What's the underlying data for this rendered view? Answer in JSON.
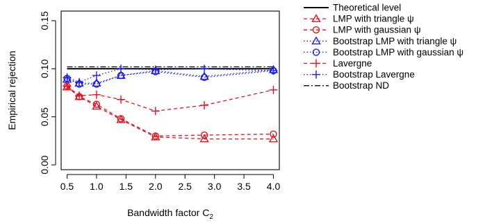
{
  "chart_data": {
    "type": "line",
    "xlabel": "Bandwidth factor C",
    "xlabel_sub": "2",
    "ylabel": "Empirical rejection",
    "xlim": [
      0.4,
      4.1
    ],
    "ylim": [
      -0.005,
      0.16
    ],
    "xticks": [
      0.5,
      1.0,
      1.5,
      2.0,
      2.5,
      3.0,
      3.5,
      4.0
    ],
    "xtick_labels": [
      "0.5",
      "1.0",
      "1.5",
      "2.0",
      "2.5",
      "3.0",
      "3.5",
      "4.0"
    ],
    "yticks": [
      0.0,
      0.05,
      0.1,
      0.15
    ],
    "ytick_labels": [
      "0.00",
      "0.05",
      "0.10",
      "0.15"
    ],
    "grid": false,
    "legend_position": "outside-right",
    "x": [
      0.5,
      0.7071,
      1.0,
      1.4142,
      2.0,
      2.8284,
      4.0
    ],
    "colors": {
      "black": "#000000",
      "red": "#e8101e",
      "blue": "#1a1aff"
    },
    "theoretical_level": 0.1,
    "bootstrap_nd": 0.102,
    "series": [
      {
        "name": "LMP with triangle ψ",
        "color": "#e8101e",
        "dash": "5,4",
        "marker": "triangle",
        "values": [
          0.081,
          0.071,
          0.061,
          0.047,
          0.029,
          0.027,
          0.027
        ]
      },
      {
        "name": "LMP with gaussian ψ",
        "color": "#e8101e",
        "dash": "5,4",
        "marker": "circle",
        "values": [
          0.082,
          0.071,
          0.063,
          0.048,
          0.03,
          0.031,
          0.032
        ]
      },
      {
        "name": "Bootstrap LMP with triangle ψ",
        "color": "#1a1aff",
        "dash": "1.5,3",
        "marker": "triangle",
        "values": [
          0.089,
          0.085,
          0.085,
          0.093,
          0.098,
          0.092,
          0.099
        ]
      },
      {
        "name": "Bootstrap LMP with gaussian ψ",
        "color": "#1a1aff",
        "dash": "1.5,3",
        "marker": "circle",
        "values": [
          0.09,
          0.084,
          0.084,
          0.093,
          0.097,
          0.091,
          0.098
        ]
      },
      {
        "name": "Lavergne",
        "color": "#e8101e",
        "dash": "5,4",
        "marker": "plus",
        "values": [
          0.082,
          0.072,
          0.073,
          0.068,
          0.056,
          0.062,
          0.078
        ]
      },
      {
        "name": "Bootstrap Lavergne",
        "color": "#1a1aff",
        "dash": "1.5,3",
        "marker": "plus",
        "values": [
          0.091,
          0.086,
          0.093,
          0.1,
          0.099,
          0.1,
          0.098
        ]
      }
    ],
    "legend": [
      {
        "label": "Theoretical level",
        "color": "#000000",
        "dash": "",
        "marker": "none"
      },
      {
        "label": "LMP with triangle ψ",
        "color": "#e8101e",
        "dash": "5,4",
        "marker": "triangle"
      },
      {
        "label": "LMP with gaussian ψ",
        "color": "#e8101e",
        "dash": "5,4",
        "marker": "circle"
      },
      {
        "label": "Bootstrap LMP with triangle ψ",
        "color": "#1a1aff",
        "dash": "1.5,3",
        "marker": "triangle"
      },
      {
        "label": "Bootstrap LMP with gaussian ψ",
        "color": "#1a1aff",
        "dash": "1.5,3",
        "marker": "circle"
      },
      {
        "label": "Lavergne",
        "color": "#e8101e",
        "dash": "5,4",
        "marker": "plus"
      },
      {
        "label": "Bootstrap Lavergne",
        "color": "#1a1aff",
        "dash": "1.5,3",
        "marker": "plus"
      },
      {
        "label": "Bootstrap ND",
        "color": "#000000",
        "dash": "8,3,2,3",
        "marker": "none"
      }
    ]
  }
}
